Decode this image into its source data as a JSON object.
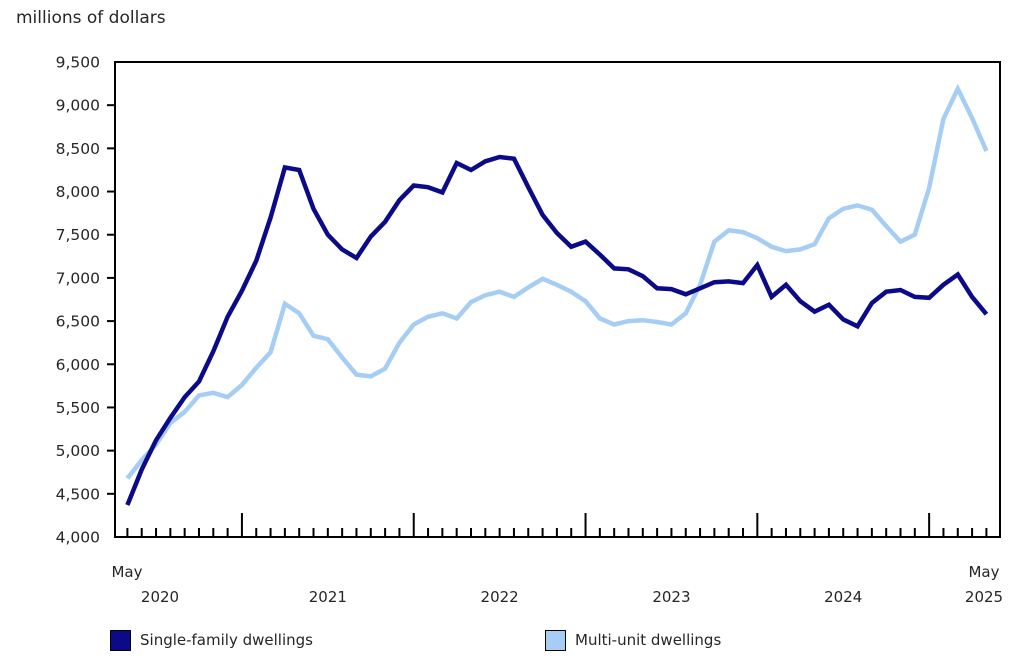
{
  "title": "millions of dollars",
  "colors": {
    "single_family": "#0b0b8a",
    "multi_unit": "#a6cdf4",
    "axis": "#000000",
    "text": "#262626"
  },
  "legend": {
    "items": [
      {
        "label": "Single-family dwellings",
        "color": "#0b0b8a"
      },
      {
        "label": "Multi-unit dwellings",
        "color": "#a6cdf4"
      }
    ]
  },
  "chart_data": {
    "type": "line",
    "title": "millions of dollars",
    "ylabel": "millions of dollars",
    "xlabel": "",
    "ylim": [
      4000,
      9500
    ],
    "y_tick_values": [
      4000,
      4500,
      5000,
      5500,
      6000,
      6500,
      7000,
      7500,
      8000,
      8500,
      9000,
      9500
    ],
    "y_tick_labels": [
      "4,000",
      "4,500",
      "5,000",
      "5,500",
      "6,000",
      "6,500",
      "7,000",
      "7,500",
      "8,000",
      "8,500",
      "9,000",
      "9,500"
    ],
    "grid": false,
    "legend_position": "bottom",
    "x_axis": {
      "start_label": {
        "month": "May",
        "year": "2020"
      },
      "interior_year_labels": [
        "2021",
        "2022",
        "2023",
        "2024"
      ],
      "end_label": {
        "month": "May",
        "year": "2025"
      }
    },
    "x": [
      "2020-05",
      "2020-06",
      "2020-07",
      "2020-08",
      "2020-09",
      "2020-10",
      "2020-11",
      "2020-12",
      "2021-01",
      "2021-02",
      "2021-03",
      "2021-04",
      "2021-05",
      "2021-06",
      "2021-07",
      "2021-08",
      "2021-09",
      "2021-10",
      "2021-11",
      "2021-12",
      "2022-01",
      "2022-02",
      "2022-03",
      "2022-04",
      "2022-05",
      "2022-06",
      "2022-07",
      "2022-08",
      "2022-09",
      "2022-10",
      "2022-11",
      "2022-12",
      "2023-01",
      "2023-02",
      "2023-03",
      "2023-04",
      "2023-05",
      "2023-06",
      "2023-07",
      "2023-08",
      "2023-09",
      "2023-10",
      "2023-11",
      "2023-12",
      "2024-01",
      "2024-02",
      "2024-03",
      "2024-04",
      "2024-05",
      "2024-06",
      "2024-07",
      "2024-08",
      "2024-09",
      "2024-10",
      "2024-11",
      "2024-12",
      "2025-01",
      "2025-02",
      "2025-03",
      "2025-04",
      "2025-05"
    ],
    "series": [
      {
        "name": "Single-family dwellings",
        "color": "#0b0b8a",
        "values": [
          4370,
          4780,
          5120,
          5380,
          5620,
          5800,
          6150,
          6550,
          6850,
          7200,
          7700,
          8280,
          8250,
          7800,
          7500,
          7330,
          7230,
          7480,
          7650,
          7900,
          8070,
          8050,
          7990,
          8330,
          8250,
          8350,
          8400,
          8380,
          8050,
          7730,
          7520,
          7360,
          7420,
          7270,
          7110,
          7100,
          7020,
          6880,
          6870,
          6810,
          6880,
          6950,
          6960,
          6940,
          7150,
          6780,
          6920,
          6730,
          6610,
          6690,
          6520,
          6440,
          6710,
          6840,
          6860,
          6780,
          6770,
          6920,
          7040,
          6780,
          6580
        ]
      },
      {
        "name": "Multi-unit dwellings",
        "color": "#a6cdf4",
        "values": [
          4680,
          4890,
          5070,
          5320,
          5450,
          5640,
          5670,
          5620,
          5760,
          5960,
          6140,
          6700,
          6590,
          6330,
          6290,
          6080,
          5880,
          5860,
          5950,
          6250,
          6460,
          6550,
          6590,
          6530,
          6720,
          6800,
          6840,
          6780,
          6890,
          6990,
          6920,
          6840,
          6730,
          6530,
          6460,
          6500,
          6510,
          6490,
          6460,
          6590,
          6920,
          7420,
          7550,
          7530,
          7460,
          7360,
          7310,
          7330,
          7390,
          7690,
          7800,
          7840,
          7790,
          7600,
          7420,
          7500,
          8040,
          8840,
          9190,
          8850,
          8470
        ]
      }
    ]
  }
}
